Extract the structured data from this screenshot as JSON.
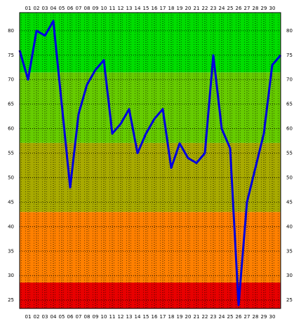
{
  "chart_data": {
    "type": "line",
    "categories": [
      null,
      "01",
      "02",
      "03",
      "04",
      "05",
      "06",
      "07",
      "08",
      "09",
      "10",
      "11",
      "12",
      "13",
      "14",
      "15",
      "16",
      "17",
      "18",
      "19",
      "20",
      "21",
      "22",
      "23",
      "24",
      "25",
      "26",
      "27",
      "28",
      "29",
      "30",
      null
    ],
    "series": [
      {
        "color": "#0000dd",
        "values": [
          76,
          70,
          80,
          79,
          82,
          65,
          48,
          63,
          69,
          72,
          74,
          59,
          61,
          64,
          55,
          59,
          62,
          64,
          52,
          57,
          54,
          53,
          55,
          75,
          60,
          56,
          24,
          45,
          52,
          59,
          73,
          75
        ]
      }
    ],
    "ylim": [
      23.3,
      83.7
    ],
    "yticks": [
      25,
      30,
      35,
      40,
      45,
      50,
      55,
      60,
      65,
      70,
      75,
      80
    ],
    "bands": [
      {
        "from": 23.3,
        "to": 28.6,
        "color": "#e80000"
      },
      {
        "from": 28.6,
        "to": 43,
        "color": "#ff8000"
      },
      {
        "from": 43,
        "to": 57.1,
        "color": "#a8aa00"
      },
      {
        "from": 57.1,
        "to": 71.5,
        "color": "#66cc00"
      },
      {
        "from": 71.5,
        "to": 83.7,
        "color": "#00dd00"
      }
    ],
    "grid": true
  }
}
